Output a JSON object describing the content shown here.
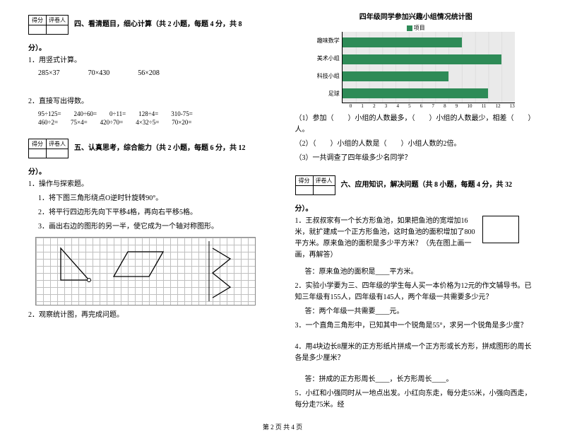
{
  "scorebox": {
    "c1": "得分",
    "c2": "评卷人"
  },
  "sec4": {
    "title": "四、看清题目，细心计算（共 2 小题，每题 4 分，共 8",
    "title_tail": "分）。",
    "q1": "1．用竖式计算。",
    "q1_items": [
      "285×37",
      "70×430",
      "56×208"
    ],
    "q2": "2．直接写出得数。",
    "q2_row1": [
      "95÷125=",
      "240÷60=",
      "0÷11=",
      "128÷4=",
      "310-75="
    ],
    "q2_row2": [
      "460÷2=",
      "75×4=",
      "420÷70=",
      "4×32÷5=",
      "70×20="
    ]
  },
  "sec5": {
    "title": "五、认真思考，综合能力（共 2 小题，每题 6 分，共 12",
    "title_tail": "分）。",
    "q1": "1．操作与探索题。",
    "q1_1": "1．将下图三角形绕点O逆时针旋转90°。",
    "q1_2": "2．将平行四边形先向下平移4格，再向右平移5格。",
    "q1_3": "3．画出右边的图形的另一半，使它成为一个轴对称图形。",
    "q2": "2．观察统计图，再完成问题。"
  },
  "chart": {
    "title": "四年级同学参加兴趣小组情况统计图",
    "legend": "项目",
    "legend_color": "#2e8b57",
    "categories": [
      "趣味数学",
      "美术小组",
      "科技小组",
      "足球"
    ],
    "values": [
      9,
      12,
      8,
      11
    ],
    "xmax": 13,
    "xticks": [
      0,
      1,
      2,
      3,
      4,
      5,
      6,
      7,
      8,
      9,
      10,
      11,
      12,
      13
    ],
    "bar_color": "#2e8b57",
    "bg": "#eaeaea"
  },
  "chart_q": {
    "l1a": "（1）参加（　　）小组的人数最多，（　　）小组的人数最少，相差（　　）人。",
    "l2": "（2）（　　）小组的人数是（　　）小组人数的2倍。",
    "l3": "（3）一共调查了四年级多少名同学？"
  },
  "sec6": {
    "title": "六、应用知识，解决问题（共 8 小题，每题 4 分，共 32",
    "title_tail": "分）。",
    "q1": "1．王叔叔家有一个长方形鱼池，如果把鱼池的宽增加16米，就扩建成一个正方形鱼池，这时鱼池的面积增加了800平方米。原来鱼池的面积是多少平方米？（先在图上画一画，再解答）",
    "a1": "答：原来鱼池的面积是____平方米。",
    "q2": "2．实验小学要为三、四年级的学生每人买一本价格为12元的作文辅导书。已知三年级有155人，四年级有145人，两个年级一共需要多少元？",
    "a2": "答：两个年级一共需要____元。",
    "q3": "3．一个直角三角形中，已知其中一个锐角是55°，求另一个锐角是多少度？",
    "q4": "4．用4块边长8厘米的正方形纸片拼成一个正方形或长方形，拼成图形的周长各是多少厘米？",
    "a4": "答：拼成的正方形周长____，长方形周长____。",
    "q5": "5．小红和小强同时从一地点出发。小红向东走，每分走55米，小强向西走，每分走75米。经"
  },
  "footer": "第 2 页 共 4 页"
}
